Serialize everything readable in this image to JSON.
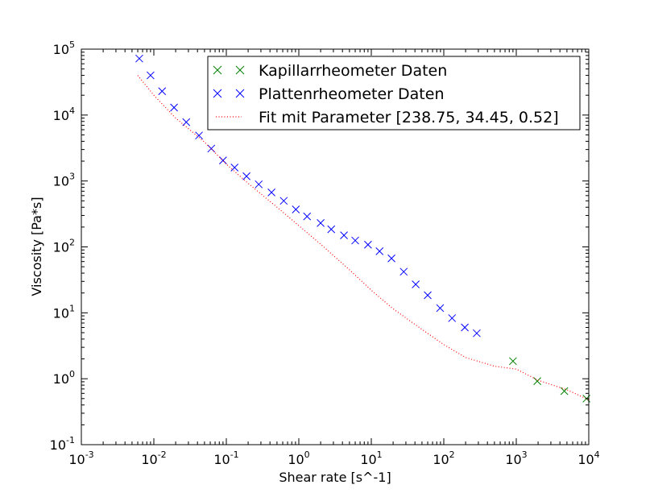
{
  "chart_data": {
    "type": "scatter",
    "title": "",
    "xlabel": "Shear rate [s^-1]",
    "ylabel": "Viscosity [Pa*s]",
    "xscale": "log",
    "yscale": "log",
    "xlim": [
      0.001,
      10000
    ],
    "ylim": [
      0.1,
      100000
    ],
    "grid": false,
    "legend_position": "top-right",
    "x_ticks": [
      {
        "base": "10",
        "exp": "-3",
        "value": 0.001
      },
      {
        "base": "10",
        "exp": "-2",
        "value": 0.01
      },
      {
        "base": "10",
        "exp": "-1",
        "value": 0.1
      },
      {
        "base": "10",
        "exp": "0",
        "value": 1
      },
      {
        "base": "10",
        "exp": "1",
        "value": 10
      },
      {
        "base": "10",
        "exp": "2",
        "value": 100
      },
      {
        "base": "10",
        "exp": "3",
        "value": 1000
      },
      {
        "base": "10",
        "exp": "4",
        "value": 10000
      }
    ],
    "y_ticks": [
      {
        "base": "10",
        "exp": "-1",
        "value": 0.1
      },
      {
        "base": "10",
        "exp": "0",
        "value": 1
      },
      {
        "base": "10",
        "exp": "1",
        "value": 10
      },
      {
        "base": "10",
        "exp": "2",
        "value": 100
      },
      {
        "base": "10",
        "exp": "3",
        "value": 1000
      },
      {
        "base": "10",
        "exp": "4",
        "value": 10000
      },
      {
        "base": "10",
        "exp": "5",
        "value": 100000
      }
    ],
    "series": [
      {
        "name": "Kapillarrheometer Daten",
        "style": "x-marker",
        "color": "#008000",
        "points": [
          [
            900,
            1.85
          ],
          [
            1950,
            0.92
          ],
          [
            4600,
            0.65
          ],
          [
            9300,
            0.5
          ]
        ]
      },
      {
        "name": "Plattenrheometer Daten",
        "style": "x-marker",
        "color": "#0000ff",
        "points": [
          [
            0.0063,
            72000
          ],
          [
            0.009,
            40000
          ],
          [
            0.013,
            23000
          ],
          [
            0.019,
            13000
          ],
          [
            0.028,
            7800
          ],
          [
            0.042,
            4900
          ],
          [
            0.062,
            3100
          ],
          [
            0.09,
            2050
          ],
          [
            0.13,
            1600
          ],
          [
            0.19,
            1180
          ],
          [
            0.28,
            890
          ],
          [
            0.42,
            670
          ],
          [
            0.62,
            500
          ],
          [
            0.91,
            370
          ],
          [
            1.3,
            290
          ],
          [
            2.0,
            230
          ],
          [
            2.8,
            185
          ],
          [
            4.2,
            150
          ],
          [
            6.0,
            125
          ],
          [
            9.0,
            108
          ],
          [
            13,
            86
          ],
          [
            19,
            67
          ],
          [
            28,
            42
          ],
          [
            41,
            27
          ],
          [
            60,
            18.5
          ],
          [
            89,
            11.8
          ],
          [
            130,
            8.3
          ],
          [
            195,
            6.0
          ],
          [
            285,
            4.9
          ]
        ]
      },
      {
        "name": "Fit mit Parameter [238.75, 34.45, 0.52]",
        "style": "dotted-line",
        "color": "#ff0000",
        "points": [
          [
            0.006,
            40000
          ],
          [
            0.01,
            20000
          ],
          [
            0.02,
            9000
          ],
          [
            0.05,
            3900
          ],
          [
            0.1,
            1800
          ],
          [
            0.2,
            920
          ],
          [
            0.5,
            400
          ],
          [
            1,
            210
          ],
          [
            2,
            110
          ],
          [
            5,
            45
          ],
          [
            10,
            22
          ],
          [
            20,
            11.5
          ],
          [
            50,
            5.6
          ],
          [
            100,
            3.3
          ],
          [
            200,
            2.1
          ],
          [
            500,
            1.55
          ],
          [
            1000,
            1.4
          ],
          [
            2000,
            0.95
          ],
          [
            5000,
            0.68
          ],
          [
            10000,
            0.48
          ]
        ]
      }
    ]
  }
}
